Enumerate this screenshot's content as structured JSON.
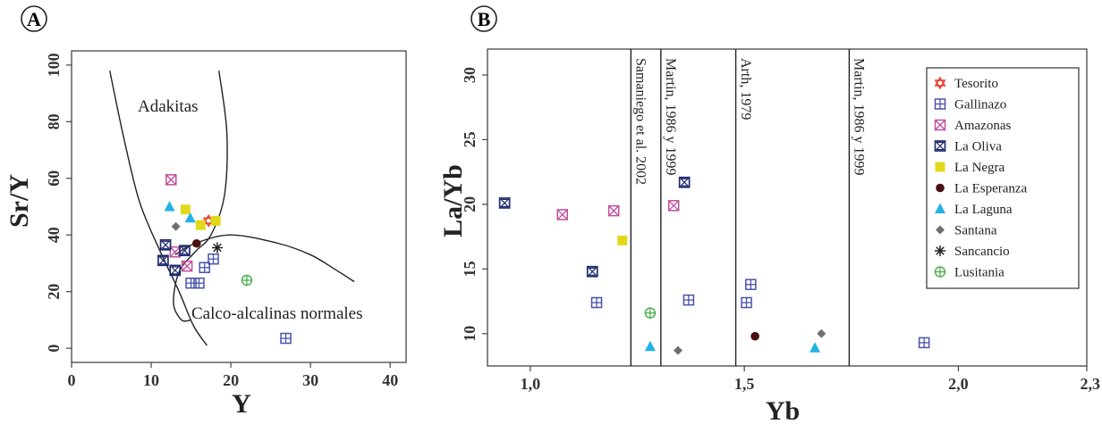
{
  "colors": {
    "tesorito": "#e8392e",
    "gallinazo": "#4a52a8",
    "amazonas": "#c04d9c",
    "la_oliva": "#1e2a6e",
    "la_negra": "#e3d91c",
    "la_esperanza": "#4a0f0f",
    "la_laguna": "#23b2e6",
    "santana": "#6f6f6f",
    "sancancio": "#222222",
    "lusitania": "#4caf50"
  },
  "panels": {
    "a": {
      "letter": "A"
    },
    "b": {
      "letter": "B"
    }
  },
  "chart_data": [
    {
      "type": "scatter",
      "panel": "A",
      "xlabel": "Y",
      "ylabel": "Sr/Y",
      "xlim": [
        0,
        42
      ],
      "ylim": [
        -5,
        105
      ],
      "xticks": [
        0,
        10,
        20,
        30,
        40
      ],
      "yticks": [
        0,
        20,
        40,
        60,
        80,
        100
      ],
      "region_labels": [
        "Adakitas",
        "Calco-alcalinas normales"
      ],
      "adakite_boundary": [
        [
          4.8,
          98
        ],
        [
          6.5,
          75
        ],
        [
          8.5,
          52
        ],
        [
          11,
          35
        ],
        [
          13.5,
          20
        ],
        [
          15.3,
          8
        ],
        [
          17,
          1
        ]
      ],
      "adakite_boundary_inner": [
        [
          18.5,
          98
        ],
        [
          19.5,
          76
        ],
        [
          19.2,
          54
        ],
        [
          17.5,
          40
        ],
        [
          15.5,
          34
        ],
        [
          13.5,
          27
        ],
        [
          12.8,
          16
        ],
        [
          13.8,
          10
        ],
        [
          15,
          10
        ]
      ],
      "calc_alkaline_boundary": [
        [
          13,
          33
        ],
        [
          15.5,
          37
        ],
        [
          20,
          40
        ],
        [
          26,
          37
        ],
        [
          30,
          33
        ],
        [
          33,
          28
        ],
        [
          35.5,
          23.5
        ]
      ],
      "series": [
        {
          "name": "Tesorito",
          "marker": "star6",
          "color": "tesorito",
          "points": [
            [
              17.2,
              45
            ]
          ]
        },
        {
          "name": "Gallinazo",
          "marker": "sqplus",
          "color": "gallinazo",
          "points": [
            [
              15,
              23
            ],
            [
              16,
              23
            ],
            [
              16.7,
              28.5
            ],
            [
              17.8,
              31.5
            ],
            [
              26.9,
              3.5
            ]
          ]
        },
        {
          "name": "Amazonas",
          "marker": "sqx",
          "color": "amazonas",
          "points": [
            [
              12.5,
              59.5
            ],
            [
              13,
              34
            ],
            [
              14.5,
              29
            ]
          ]
        },
        {
          "name": "La Oliva",
          "marker": "hourglass",
          "color": "la_oliva",
          "points": [
            [
              11.8,
              36.5
            ],
            [
              11.5,
              31
            ],
            [
              13,
              27.5
            ],
            [
              14.2,
              34.5
            ]
          ]
        },
        {
          "name": "La Negra",
          "marker": "square",
          "color": "la_negra",
          "points": [
            [
              14.3,
              49
            ],
            [
              16.2,
              43.5
            ],
            [
              18.1,
              45
            ]
          ]
        },
        {
          "name": "La Esperanza",
          "marker": "circle",
          "color": "la_esperanza",
          "points": [
            [
              15.7,
              37
            ]
          ]
        },
        {
          "name": "La Laguna",
          "marker": "triangle",
          "color": "la_laguna",
          "points": [
            [
              12.3,
              50
            ],
            [
              14.9,
              46
            ]
          ]
        },
        {
          "name": "Santana",
          "marker": "diamond",
          "color": "santana",
          "points": [
            [
              13.1,
              43
            ]
          ]
        },
        {
          "name": "Sancancio",
          "marker": "asterisk",
          "color": "sancancio",
          "points": [
            [
              18.3,
              35.5
            ]
          ]
        },
        {
          "name": "Lusitania",
          "marker": "circplus",
          "color": "lusitania",
          "points": [
            [
              22,
              24
            ]
          ]
        }
      ]
    },
    {
      "type": "scatter",
      "panel": "B",
      "xlabel": "Yb",
      "ylabel": "La/Yb",
      "xlim": [
        0.9,
        2.3
      ],
      "ylim": [
        7.5,
        32
      ],
      "xticks": [
        1.0,
        1.5,
        2.0,
        2.3
      ],
      "xtick_labels": [
        "1,0",
        "1,5",
        "2,0",
        "2,3"
      ],
      "yticks": [
        10,
        15,
        20,
        25,
        30
      ],
      "reference_lines": [
        {
          "x": 1.235,
          "label": "Samaniego et al. 2002"
        },
        {
          "x": 1.305,
          "label": "Martin, 1986 y 1999"
        },
        {
          "x": 1.48,
          "label": "Arth, 1979"
        },
        {
          "x": 1.745,
          "label": "Martin, 1986 y 1999"
        }
      ],
      "series": [
        {
          "name": "Tesorito",
          "marker": "star6",
          "color": "tesorito",
          "points": []
        },
        {
          "name": "Gallinazo",
          "marker": "sqplus",
          "color": "gallinazo",
          "points": [
            [
              1.155,
              12.4
            ],
            [
              1.37,
              12.6
            ],
            [
              1.505,
              12.4
            ],
            [
              1.515,
              13.8
            ],
            [
              1.92,
              9.3
            ]
          ]
        },
        {
          "name": "Amazonas",
          "marker": "sqx",
          "color": "amazonas",
          "points": [
            [
              1.075,
              19.2
            ],
            [
              1.195,
              19.5
            ],
            [
              1.335,
              19.9
            ]
          ]
        },
        {
          "name": "La Oliva",
          "marker": "hourglass",
          "color": "la_oliva",
          "points": [
            [
              0.94,
              20.1
            ],
            [
              1.145,
              14.8
            ],
            [
              1.36,
              21.7
            ]
          ]
        },
        {
          "name": "La Negra",
          "marker": "square",
          "color": "la_negra",
          "points": [
            [
              1.215,
              17.2
            ]
          ]
        },
        {
          "name": "La Esperanza",
          "marker": "circle",
          "color": "la_esperanza",
          "points": [
            [
              1.525,
              9.8
            ]
          ]
        },
        {
          "name": "La Laguna",
          "marker": "triangle",
          "color": "la_laguna",
          "points": [
            [
              1.28,
              9.0
            ],
            [
              1.665,
              8.9
            ]
          ]
        },
        {
          "name": "Santana",
          "marker": "diamond",
          "color": "santana",
          "points": [
            [
              1.345,
              8.7
            ],
            [
              1.68,
              10.0
            ]
          ]
        },
        {
          "name": "Sancancio",
          "marker": "asterisk",
          "color": "sancancio",
          "points": []
        },
        {
          "name": "Lusitania",
          "marker": "circplus",
          "color": "lusitania",
          "points": [
            [
              1.28,
              11.6
            ]
          ]
        }
      ]
    }
  ],
  "legend": {
    "placement": "top-right of panel B",
    "entries": [
      {
        "label": "Tesorito",
        "marker": "star6",
        "color": "tesorito"
      },
      {
        "label": "Gallinazo",
        "marker": "sqplus",
        "color": "gallinazo"
      },
      {
        "label": "Amazonas",
        "marker": "sqx",
        "color": "amazonas"
      },
      {
        "label": "La Oliva",
        "marker": "hourglass",
        "color": "la_oliva"
      },
      {
        "label": "La Negra",
        "marker": "square",
        "color": "la_negra"
      },
      {
        "label": "La Esperanza",
        "marker": "circle",
        "color": "la_esperanza"
      },
      {
        "label": "La Laguna",
        "marker": "triangle",
        "color": "la_laguna"
      },
      {
        "label": "Santana",
        "marker": "diamond",
        "color": "santana"
      },
      {
        "label": "Sancancio",
        "marker": "asterisk",
        "color": "sancancio"
      },
      {
        "label": "Lusitania",
        "marker": "circplus",
        "color": "lusitania"
      }
    ]
  }
}
